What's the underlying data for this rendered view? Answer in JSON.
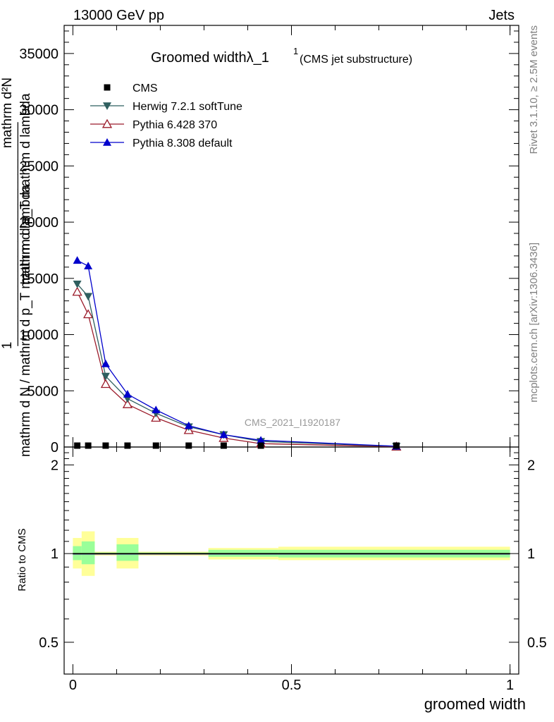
{
  "header": {
    "left": "13000 GeV pp",
    "right": "Jets"
  },
  "side_labels": {
    "rivet": "Rivet 3.1.10, ≥ 2.5M events",
    "mcplots": "mcplots.cern.ch [arXiv:1306.3436]"
  },
  "watermark": "CMS_2021_I1920187",
  "chart_data": [
    {
      "type": "line",
      "panel": "main",
      "title": "Groomed widthλ_1",
      "title_sup": "1",
      "subtitle": "(CMS jet substructure)",
      "ylabel_top": "mathrm d²N",
      "ylabel_mid": "mathrm d p_T mathrm d lambda",
      "ylabel_bottom": "mathrm d N / mathrm d p_T mathrm d lambda",
      "ylabel_one": "1",
      "xlim": [
        -0.02,
        1.02
      ],
      "ylim": [
        0,
        37500
      ],
      "yticks": [
        0,
        5000,
        10000,
        15000,
        20000,
        25000,
        30000,
        35000
      ],
      "ytick_labels": [
        "0",
        "5000",
        "10000",
        "15000",
        "20000",
        "25000",
        "30000",
        "35000"
      ],
      "legend": [
        "CMS",
        "Herwig 7.2.1 softTune",
        "Pythia 6.428 370",
        "Pythia 8.308 default"
      ],
      "series": [
        {
          "name": "CMS",
          "color": "#000000",
          "marker": "square",
          "x": [
            0.01,
            0.035,
            0.075,
            0.125,
            0.19,
            0.265,
            0.345,
            0.43,
            0.74
          ],
          "values": [
            0,
            0,
            0,
            0,
            0,
            0,
            0,
            0,
            0
          ]
        },
        {
          "name": "Herwig 7.2.1 softTune",
          "color": "#2f5f5f",
          "marker": "triangle-down",
          "x": [
            0.01,
            0.035,
            0.075,
            0.125,
            0.19,
            0.265,
            0.345,
            0.43,
            0.74
          ],
          "values": [
            14500,
            13400,
            6300,
            4300,
            3000,
            1800,
            1100,
            500,
            60
          ]
        },
        {
          "name": "Pythia 6.428 370",
          "color": "#9b1b2a",
          "marker": "triangle-up-open",
          "x": [
            0.01,
            0.035,
            0.075,
            0.125,
            0.19,
            0.265,
            0.345,
            0.43,
            0.74
          ],
          "values": [
            13800,
            11800,
            5600,
            3800,
            2600,
            1500,
            800,
            300,
            30
          ]
        },
        {
          "name": "Pythia 8.308 default",
          "color": "#0000cc",
          "marker": "triangle-up",
          "x": [
            0.01,
            0.035,
            0.075,
            0.125,
            0.19,
            0.265,
            0.345,
            0.43,
            0.74
          ],
          "values": [
            16600,
            16100,
            7400,
            4700,
            3300,
            1900,
            1100,
            600,
            70
          ]
        }
      ]
    },
    {
      "type": "area",
      "panel": "ratio",
      "ylabel": "Ratio to CMS",
      "xlabel": "groomed width",
      "xlim": [
        -0.02,
        1.02
      ],
      "ylim": [
        0.39,
        2.3
      ],
      "yscale": "log",
      "yticks": [
        0.5,
        1,
        2
      ],
      "ytick_labels": [
        "0.5",
        "1",
        "2"
      ],
      "xticks": [
        0,
        0.5,
        1
      ],
      "xtick_labels": [
        "0",
        "0.5",
        "1"
      ],
      "bands": [
        {
          "x0": 0.0,
          "x1": 0.02,
          "outer": [
            0.89,
            1.13
          ],
          "inner": [
            0.95,
            1.06
          ]
        },
        {
          "x0": 0.02,
          "x1": 0.05,
          "outer": [
            0.84,
            1.19
          ],
          "inner": [
            0.92,
            1.1
          ]
        },
        {
          "x0": 0.05,
          "x1": 0.1,
          "outer": [
            0.985,
            1.015
          ],
          "inner": [
            0.993,
            1.008
          ]
        },
        {
          "x0": 0.1,
          "x1": 0.15,
          "outer": [
            0.89,
            1.13
          ],
          "inner": [
            0.945,
            1.075
          ]
        },
        {
          "x0": 0.15,
          "x1": 0.31,
          "outer": [
            0.985,
            1.015
          ],
          "inner": [
            0.993,
            1.008
          ]
        },
        {
          "x0": 0.31,
          "x1": 0.47,
          "outer": [
            0.955,
            1.045
          ],
          "inner": [
            0.975,
            1.03
          ]
        },
        {
          "x0": 0.47,
          "x1": 1.0,
          "outer": [
            0.95,
            1.055
          ],
          "inner": [
            0.97,
            1.03
          ]
        }
      ],
      "reference": {
        "name": "CMS",
        "x": [
          0.0,
          1.0
        ],
        "values": [
          1,
          1
        ]
      }
    }
  ],
  "colors": {
    "band_outer": "#ffff99",
    "band_inner": "#99ff99",
    "axis": "#000000",
    "side_label": "#808080",
    "watermark": "#999999"
  }
}
